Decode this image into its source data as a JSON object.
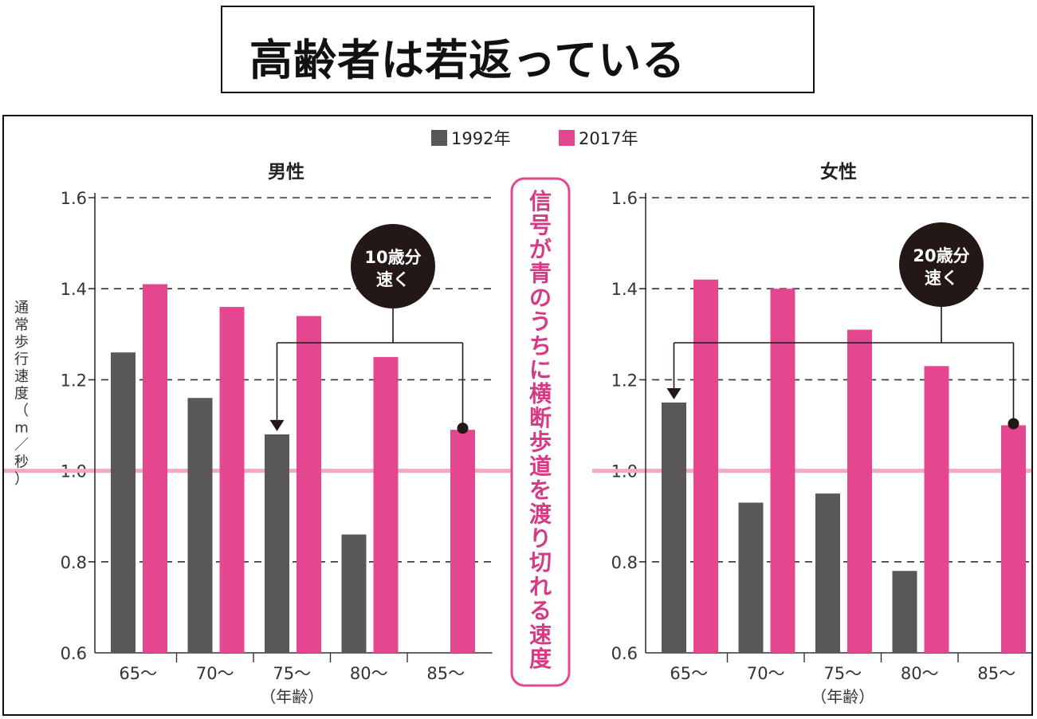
{
  "title": "高齢者は若返っている",
  "colors": {
    "series_1992": "#595757",
    "series_2017": "#e4478f",
    "threshold": "#f1a7c6",
    "callout": "#231815",
    "banner_border": "#e4478f",
    "banner_text": "#d63a85"
  },
  "banner": "信号が青のうちに横断歩道を渡り切れる速度",
  "y_axis_label": [
    "通",
    "常",
    "歩",
    "行",
    "速",
    "度",
    "（",
    "m",
    "／",
    "秒",
    "）"
  ],
  "chart_data": [
    {
      "type": "bar",
      "panel": "男性",
      "title": "男性",
      "categories": [
        "65〜",
        "70〜",
        "75〜",
        "80〜",
        "85〜"
      ],
      "series": [
        {
          "name": "1992年",
          "values": [
            1.26,
            1.16,
            1.08,
            0.86,
            null
          ]
        },
        {
          "name": "2017年",
          "values": [
            1.41,
            1.36,
            1.34,
            1.25,
            1.09
          ]
        }
      ],
      "xlabel": "（年齢）",
      "ylabel": "通常歩行速度（m／秒）",
      "ylim": [
        0.6,
        1.6
      ],
      "yticks": [
        "0.6",
        "0.8",
        "1.0",
        "1.2",
        "1.4",
        "1.6"
      ],
      "threshold": 1.0,
      "legend": [
        "1992年",
        "2017年"
      ],
      "callout": {
        "line1": "10歳分",
        "line2": "速く",
        "from": "85〜 2017年",
        "to": "75〜 1992年"
      }
    },
    {
      "type": "bar",
      "panel": "女性",
      "title": "女性",
      "categories": [
        "65〜",
        "70〜",
        "75〜",
        "80〜",
        "85〜"
      ],
      "series": [
        {
          "name": "1992年",
          "values": [
            1.15,
            0.93,
            0.95,
            0.78,
            null
          ]
        },
        {
          "name": "2017年",
          "values": [
            1.42,
            1.4,
            1.31,
            1.23,
            1.1
          ]
        }
      ],
      "xlabel": "（年齢）",
      "ylabel": "",
      "ylim": [
        0.6,
        1.6
      ],
      "yticks": [
        "0.6",
        "0.8",
        "1.0",
        "1.2",
        "1.4",
        "1.6"
      ],
      "threshold": 1.0,
      "legend": [
        "1992年",
        "2017年"
      ],
      "callout": {
        "line1": "20歳分",
        "line2": "速く",
        "from": "85〜 2017年",
        "to": "65〜 1992年"
      }
    }
  ]
}
